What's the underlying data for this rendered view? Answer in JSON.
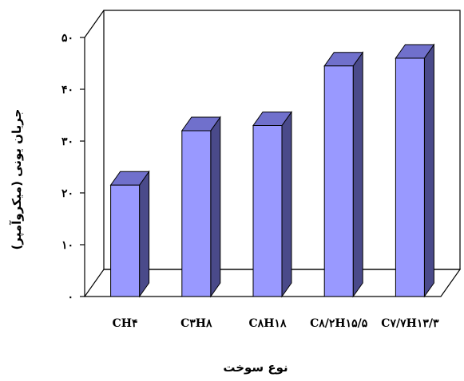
{
  "chart_data": {
    "type": "bar",
    "categories": [
      "CH۴",
      "C۳H۸",
      "C۸H۱۸",
      "C۸/۲H۱۵/۵",
      "C۷/۷H۱۳/۳"
    ],
    "values": [
      21.5,
      32,
      33,
      44.5,
      46
    ],
    "y_ticks": [
      {
        "value": 0,
        "label": "۰"
      },
      {
        "value": 10,
        "label": "۱۰"
      },
      {
        "value": 20,
        "label": "۲۰"
      },
      {
        "value": 30,
        "label": "۳۰"
      },
      {
        "value": 40,
        "label": "۴۰"
      },
      {
        "value": 50,
        "label": "۵۰"
      }
    ],
    "ylim": [
      0,
      50
    ],
    "xlabel": "نوع سوخت",
    "ylabel": "جریان یونی (میکروآمپر)",
    "grid": false,
    "legend": "none",
    "style": "3d-column",
    "colors": {
      "bar_front": "#9999ff",
      "bar_side": "#4a4a8a",
      "bar_top": "#7070cc",
      "wall": "#ffffff",
      "axis": "#000000"
    }
  }
}
